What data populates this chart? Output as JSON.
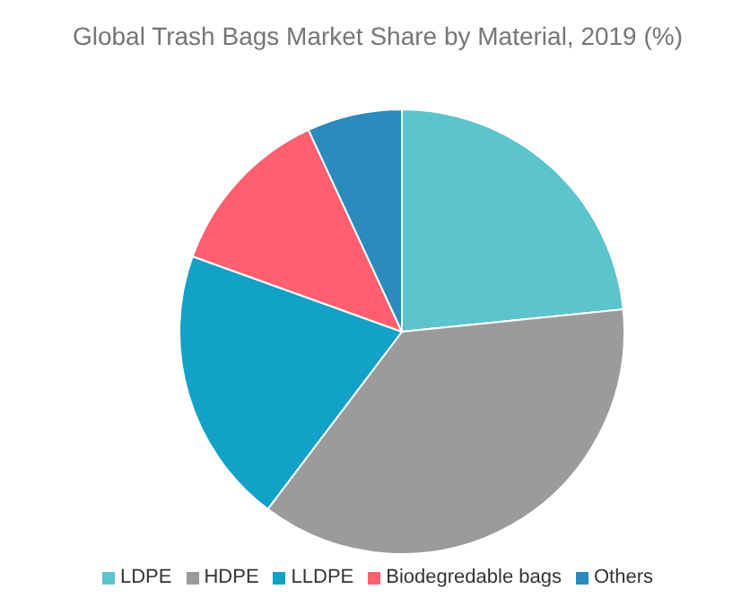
{
  "chart_data": {
    "type": "pie",
    "title": "Global Trash Bags Market Share by Material, 2019 (%)",
    "categories": [
      "LDPE",
      "HDPE",
      "LLDPE",
      "Biodegredable bags",
      "Others"
    ],
    "values": [
      23.4,
      36.9,
      20.2,
      12.6,
      6.9
    ],
    "colors": [
      "#5bc4cc",
      "#9b9b9b",
      "#12a1c7",
      "#ff5f6e",
      "#2a8bbd"
    ],
    "legend": "bottom"
  }
}
